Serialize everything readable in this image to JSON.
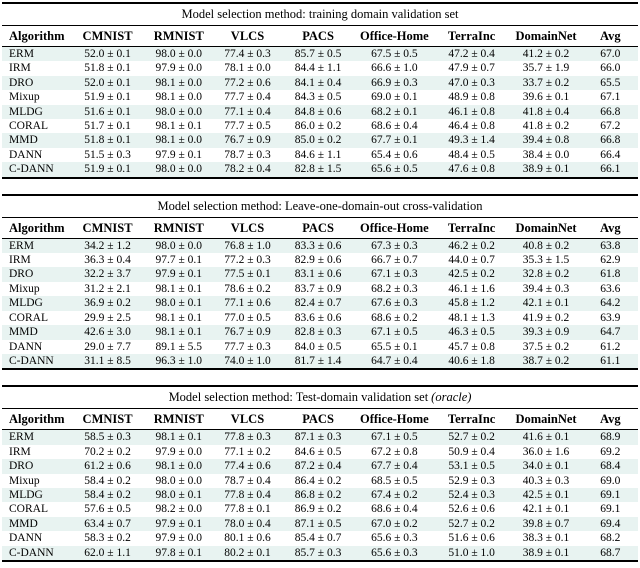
{
  "colors": {
    "row_stripe": "#e8f3f1",
    "rule": "#000000",
    "text": "#000000"
  },
  "columns": [
    "Algorithm",
    "CMNIST",
    "RMNIST",
    "VLCS",
    "PACS",
    "Office-Home",
    "TerraInc",
    "DomainNet",
    "Avg"
  ],
  "tables": [
    {
      "title_main": "Model selection method: training domain validation set",
      "title_italic": "",
      "columns": [
        "Algorithm",
        "CMNIST",
        "RMNIST",
        "VLCS",
        "PACS",
        "Office-Home",
        "TerraInc",
        "DomainNet",
        "Avg"
      ],
      "rows": [
        {
          "algorithm": "ERM",
          "cells": [
            "52.0 ± 0.1",
            "98.0 ± 0.0",
            "77.4 ± 0.3",
            "85.7 ± 0.5",
            "67.5 ± 0.5",
            "47.2 ± 0.4",
            "41.2 ± 0.2"
          ],
          "avg": "67.0"
        },
        {
          "algorithm": "IRM",
          "cells": [
            "51.8 ± 0.1",
            "97.9 ± 0.0",
            "78.1 ± 0.0",
            "84.4 ± 1.1",
            "66.6 ± 1.0",
            "47.9 ± 0.7",
            "35.7 ± 1.9"
          ],
          "avg": "66.0"
        },
        {
          "algorithm": "DRO",
          "cells": [
            "52.0 ± 0.1",
            "98.1 ± 0.0",
            "77.2 ± 0.6",
            "84.1 ± 0.4",
            "66.9 ± 0.3",
            "47.0 ± 0.3",
            "33.7 ± 0.2"
          ],
          "avg": "65.5"
        },
        {
          "algorithm": "Mixup",
          "cells": [
            "51.9 ± 0.1",
            "98.1 ± 0.0",
            "77.7 ± 0.4",
            "84.3 ± 0.5",
            "69.0 ± 0.1",
            "48.9 ± 0.8",
            "39.6 ± 0.1"
          ],
          "avg": "67.1"
        },
        {
          "algorithm": "MLDG",
          "cells": [
            "51.6 ± 0.1",
            "98.0 ± 0.0",
            "77.1 ± 0.4",
            "84.8 ± 0.6",
            "68.2 ± 0.1",
            "46.1 ± 0.8",
            "41.8 ± 0.4"
          ],
          "avg": "66.8"
        },
        {
          "algorithm": "CORAL",
          "cells": [
            "51.7 ± 0.1",
            "98.1 ± 0.1",
            "77.7 ± 0.5",
            "86.0 ± 0.2",
            "68.6 ± 0.4",
            "46.4 ± 0.8",
            "41.8 ± 0.2"
          ],
          "avg": "67.2"
        },
        {
          "algorithm": "MMD",
          "cells": [
            "51.8 ± 0.1",
            "98.1 ± 0.0",
            "76.7 ± 0.9",
            "85.0 ± 0.2",
            "67.7 ± 0.1",
            "49.3 ± 1.4",
            "39.4 ± 0.8"
          ],
          "avg": "66.8"
        },
        {
          "algorithm": "DANN",
          "cells": [
            "51.5 ± 0.3",
            "97.9 ± 0.1",
            "78.7 ± 0.3",
            "84.6 ± 1.1",
            "65.4 ± 0.6",
            "48.4 ± 0.5",
            "38.4 ± 0.0"
          ],
          "avg": "66.4"
        },
        {
          "algorithm": "C-DANN",
          "cells": [
            "51.9 ± 0.1",
            "98.0 ± 0.0",
            "78.2 ± 0.4",
            "82.8 ± 1.5",
            "65.6 ± 0.5",
            "47.6 ± 0.8",
            "38.9 ± 0.1"
          ],
          "avg": "66.1"
        }
      ]
    },
    {
      "title_main": "Model selection method: Leave-one-domain-out cross-validation",
      "title_italic": "",
      "columns": [
        "Algorithm",
        "CMNIST",
        "RMNIST",
        "VLCS",
        "PACS",
        "Office-Home",
        "TerraInc",
        "DomainNet",
        "Avg"
      ],
      "rows": [
        {
          "algorithm": "ERM",
          "cells": [
            "34.2 ± 1.2",
            "98.0 ± 0.0",
            "76.8 ± 1.0",
            "83.3 ± 0.6",
            "67.3 ± 0.3",
            "46.2 ± 0.2",
            "40.8 ± 0.2"
          ],
          "avg": "63.8"
        },
        {
          "algorithm": "IRM",
          "cells": [
            "36.3 ± 0.4",
            "97.7 ± 0.1",
            "77.2 ± 0.3",
            "82.9 ± 0.6",
            "66.7 ± 0.7",
            "44.0 ± 0.7",
            "35.3 ± 1.5"
          ],
          "avg": "62.9"
        },
        {
          "algorithm": "DRO",
          "cells": [
            "32.2 ± 3.7",
            "97.9 ± 0.1",
            "77.5 ± 0.1",
            "83.1 ± 0.6",
            "67.1 ± 0.3",
            "42.5 ± 0.2",
            "32.8 ± 0.2"
          ],
          "avg": "61.8"
        },
        {
          "algorithm": "Mixup",
          "cells": [
            "31.2 ± 2.1",
            "98.1 ± 0.1",
            "78.6 ± 0.2",
            "83.7 ± 0.9",
            "68.2 ± 0.3",
            "46.1 ± 1.6",
            "39.4 ± 0.3"
          ],
          "avg": "63.6"
        },
        {
          "algorithm": "MLDG",
          "cells": [
            "36.9 ± 0.2",
            "98.0 ± 0.1",
            "77.1 ± 0.6",
            "82.4 ± 0.7",
            "67.6 ± 0.3",
            "45.8 ± 1.2",
            "42.1 ± 0.1"
          ],
          "avg": "64.2"
        },
        {
          "algorithm": "CORAL",
          "cells": [
            "29.9 ± 2.5",
            "98.1 ± 0.1",
            "77.0 ± 0.5",
            "83.6 ± 0.6",
            "68.6 ± 0.2",
            "48.1 ± 1.3",
            "41.9 ± 0.2"
          ],
          "avg": "63.9"
        },
        {
          "algorithm": "MMD",
          "cells": [
            "42.6 ± 3.0",
            "98.1 ± 0.1",
            "76.7 ± 0.9",
            "82.8 ± 0.3",
            "67.1 ± 0.5",
            "46.3 ± 0.5",
            "39.3 ± 0.9"
          ],
          "avg": "64.7"
        },
        {
          "algorithm": "DANN",
          "cells": [
            "29.0 ± 7.7",
            "89.1 ± 5.5",
            "77.7 ± 0.3",
            "84.0 ± 0.5",
            "65.5 ± 0.1",
            "45.7 ± 0.8",
            "37.5 ± 0.2"
          ],
          "avg": "61.2"
        },
        {
          "algorithm": "C-DANN",
          "cells": [
            "31.1 ± 8.5",
            "96.3 ± 1.0",
            "74.0 ± 1.0",
            "81.7 ± 1.4",
            "64.7 ± 0.4",
            "40.6 ± 1.8",
            "38.7 ± 0.2"
          ],
          "avg": "61.1"
        }
      ]
    },
    {
      "title_main": "Model selection method: Test-domain validation set",
      "title_italic": "(oracle)",
      "columns": [
        "Algorithm",
        "CMNIST",
        "RMNIST",
        "VLCS",
        "PACS",
        "Office-Home",
        "TerraInc",
        "DomainNet",
        "Avg"
      ],
      "rows": [
        {
          "algorithm": "ERM",
          "cells": [
            "58.5 ± 0.3",
            "98.1 ± 0.1",
            "77.8 ± 0.3",
            "87.1 ± 0.3",
            "67.1 ± 0.5",
            "52.7 ± 0.2",
            "41.6 ± 0.1"
          ],
          "avg": "68.9"
        },
        {
          "algorithm": "IRM",
          "cells": [
            "70.2 ± 0.2",
            "97.9 ± 0.0",
            "77.1 ± 0.2",
            "84.6 ± 0.5",
            "67.2 ± 0.8",
            "50.9 ± 0.4",
            "36.0 ± 1.6"
          ],
          "avg": "69.2"
        },
        {
          "algorithm": "DRO",
          "cells": [
            "61.2 ± 0.6",
            "98.1 ± 0.0",
            "77.4 ± 0.6",
            "87.2 ± 0.4",
            "67.7 ± 0.4",
            "53.1 ± 0.5",
            "34.0 ± 0.1"
          ],
          "avg": "68.4"
        },
        {
          "algorithm": "Mixup",
          "cells": [
            "58.4 ± 0.2",
            "98.0 ± 0.0",
            "78.7 ± 0.4",
            "86.4 ± 0.2",
            "68.5 ± 0.5",
            "52.9 ± 0.3",
            "40.3 ± 0.3"
          ],
          "avg": "69.0"
        },
        {
          "algorithm": "MLDG",
          "cells": [
            "58.4 ± 0.2",
            "98.0 ± 0.1",
            "77.8 ± 0.4",
            "86.8 ± 0.2",
            "67.4 ± 0.2",
            "52.4 ± 0.3",
            "42.5 ± 0.1"
          ],
          "avg": "69.1"
        },
        {
          "algorithm": "CORAL",
          "cells": [
            "57.6 ± 0.5",
            "98.2 ± 0.0",
            "77.8 ± 0.1",
            "86.9 ± 0.2",
            "68.6 ± 0.4",
            "52.6 ± 0.6",
            "42.1 ± 0.1"
          ],
          "avg": "69.1"
        },
        {
          "algorithm": "MMD",
          "cells": [
            "63.4 ± 0.7",
            "97.9 ± 0.1",
            "78.0 ± 0.4",
            "87.1 ± 0.5",
            "67.0 ± 0.2",
            "52.7 ± 0.2",
            "39.8 ± 0.7"
          ],
          "avg": "69.4"
        },
        {
          "algorithm": "DANN",
          "cells": [
            "58.3 ± 0.2",
            "97.9 ± 0.0",
            "80.1 ± 0.6",
            "85.4 ± 0.7",
            "65.6 ± 0.3",
            "51.6 ± 0.6",
            "38.3 ± 0.1"
          ],
          "avg": "68.2"
        },
        {
          "algorithm": "C-DANN",
          "cells": [
            "62.0 ± 1.1",
            "97.8 ± 0.1",
            "80.2 ± 0.1",
            "85.7 ± 0.3",
            "65.6 ± 0.3",
            "51.0 ± 1.0",
            "38.9 ± 0.1"
          ],
          "avg": "68.7"
        }
      ]
    }
  ]
}
